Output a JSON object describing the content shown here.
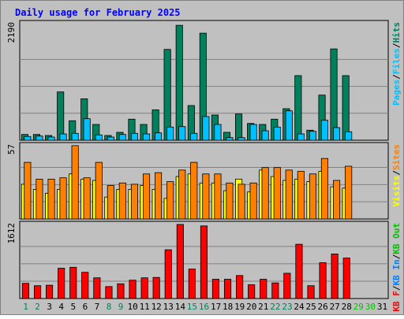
{
  "title": "Daily usage for February 2025",
  "colors": {
    "background": "#C0C0C0",
    "plot_bg": "#C0C0C0",
    "title": "#0000FF",
    "hits": "#00805C",
    "files": "#00C0FF",
    "visits": "#FFFF00",
    "sites": "#FF8000",
    "kbytes": "#FF0000",
    "kb_in": "#0080FF",
    "kb_out": "#00C000",
    "weekend_day": "#00805C",
    "weekday_day": "#000000",
    "future_day": "#00C000",
    "grid": "#808080"
  },
  "chart_data": [
    {
      "type": "bar",
      "panel": "hits_files",
      "max_label": "2190",
      "ylim": [
        0,
        2190
      ],
      "legend": [
        "Pages",
        "/",
        "Files",
        "/",
        "Hits"
      ],
      "legend_colors": [
        "#00C0FF",
        "#000000",
        "#00C0FF",
        "#000000",
        "#00805C"
      ],
      "categories": [
        "1",
        "2",
        "3",
        "4",
        "5",
        "6",
        "7",
        "8",
        "9",
        "10",
        "11",
        "12",
        "13",
        "14",
        "15",
        "16",
        "17",
        "18",
        "19",
        "20",
        "21",
        "22",
        "23",
        "24",
        "25",
        "26",
        "27",
        "28",
        "29",
        "30",
        "31"
      ],
      "series": [
        {
          "name": "Hits",
          "values": [
            110,
            110,
            90,
            920,
            370,
            790,
            300,
            90,
            150,
            400,
            300,
            580,
            1730,
            2190,
            660,
            2040,
            480,
            150,
            500,
            320,
            300,
            400,
            600,
            1230,
            190,
            860,
            1740,
            1230,
            null,
            null,
            null
          ]
        },
        {
          "name": "Files",
          "values": [
            70,
            80,
            60,
            120,
            130,
            410,
            100,
            60,
            110,
            130,
            120,
            140,
            250,
            260,
            130,
            450,
            300,
            50,
            50,
            300,
            180,
            250,
            560,
            120,
            170,
            380,
            240,
            160,
            null,
            null,
            null
          ]
        }
      ]
    },
    {
      "type": "bar",
      "panel": "visits_sites",
      "max_label": "57",
      "ylim": [
        0,
        57
      ],
      "legend": [
        "Visits",
        "/",
        "Sites"
      ],
      "legend_colors": [
        "#FFFF00",
        "#000000",
        "#FF8000"
      ],
      "categories": [
        "1",
        "2",
        "3",
        "4",
        "5",
        "6",
        "7",
        "8",
        "9",
        "10",
        "11",
        "12",
        "13",
        "14",
        "15",
        "16",
        "17",
        "18",
        "19",
        "20",
        "21",
        "22",
        "23",
        "24",
        "25",
        "26",
        "27",
        "28",
        "29",
        "30",
        "31"
      ],
      "series": [
        {
          "name": "Visits",
          "values": [
            27,
            23,
            20,
            23,
            35,
            31,
            30,
            17,
            23,
            23,
            26,
            23,
            16,
            33,
            35,
            28,
            28,
            22,
            31,
            21,
            38,
            33,
            30,
            31,
            29,
            37,
            25,
            24,
            null,
            null,
            null
          ]
        },
        {
          "name": "Sites",
          "values": [
            44,
            31,
            31,
            32,
            57,
            32,
            44,
            26,
            28,
            27,
            35,
            36,
            29,
            38,
            44,
            35,
            35,
            28,
            27,
            28,
            40,
            40,
            38,
            37,
            35,
            47,
            30,
            41,
            null,
            null,
            null
          ]
        }
      ]
    },
    {
      "type": "bar",
      "panel": "kbytes",
      "max_label": "1612",
      "ylim": [
        0,
        1612
      ],
      "legend": [
        "KB F",
        "/",
        "KB In",
        "/",
        "KB Out"
      ],
      "legend_colors": [
        "#FF0000",
        "#000000",
        "#0080FF",
        "#000000",
        "#00C000"
      ],
      "categories": [
        "1",
        "2",
        "3",
        "4",
        "5",
        "6",
        "7",
        "8",
        "9",
        "10",
        "11",
        "12",
        "13",
        "14",
        "15",
        "16",
        "17",
        "18",
        "19",
        "20",
        "21",
        "22",
        "23",
        "24",
        "25",
        "26",
        "27",
        "28",
        "29",
        "30",
        "31"
      ],
      "series": [
        {
          "name": "KB F",
          "values": [
            330,
            280,
            290,
            660,
            680,
            570,
            450,
            260,
            320,
            400,
            450,
            460,
            1060,
            1612,
            640,
            1580,
            420,
            420,
            500,
            300,
            420,
            340,
            550,
            1180,
            280,
            780,
            970,
            880,
            null,
            null,
            null
          ]
        }
      ]
    }
  ],
  "days": [
    {
      "label": "1",
      "kind": "weekend"
    },
    {
      "label": "2",
      "kind": "weekend"
    },
    {
      "label": "3",
      "kind": "weekday"
    },
    {
      "label": "4",
      "kind": "weekday"
    },
    {
      "label": "5",
      "kind": "weekday"
    },
    {
      "label": "6",
      "kind": "weekday"
    },
    {
      "label": "7",
      "kind": "weekday"
    },
    {
      "label": "8",
      "kind": "weekend"
    },
    {
      "label": "9",
      "kind": "weekend"
    },
    {
      "label": "10",
      "kind": "weekday"
    },
    {
      "label": "11",
      "kind": "weekday"
    },
    {
      "label": "12",
      "kind": "weekday"
    },
    {
      "label": "13",
      "kind": "weekday"
    },
    {
      "label": "14",
      "kind": "weekday"
    },
    {
      "label": "15",
      "kind": "weekend"
    },
    {
      "label": "16",
      "kind": "weekend"
    },
    {
      "label": "17",
      "kind": "weekday"
    },
    {
      "label": "18",
      "kind": "weekday"
    },
    {
      "label": "19",
      "kind": "weekday"
    },
    {
      "label": "20",
      "kind": "weekday"
    },
    {
      "label": "21",
      "kind": "weekday"
    },
    {
      "label": "22",
      "kind": "weekend"
    },
    {
      "label": "23",
      "kind": "weekend"
    },
    {
      "label": "24",
      "kind": "weekday"
    },
    {
      "label": "25",
      "kind": "weekday"
    },
    {
      "label": "26",
      "kind": "weekday"
    },
    {
      "label": "27",
      "kind": "weekday"
    },
    {
      "label": "28",
      "kind": "weekday"
    },
    {
      "label": "29",
      "kind": "future"
    },
    {
      "label": "30",
      "kind": "future"
    },
    {
      "label": "31",
      "kind": "weekday"
    }
  ]
}
